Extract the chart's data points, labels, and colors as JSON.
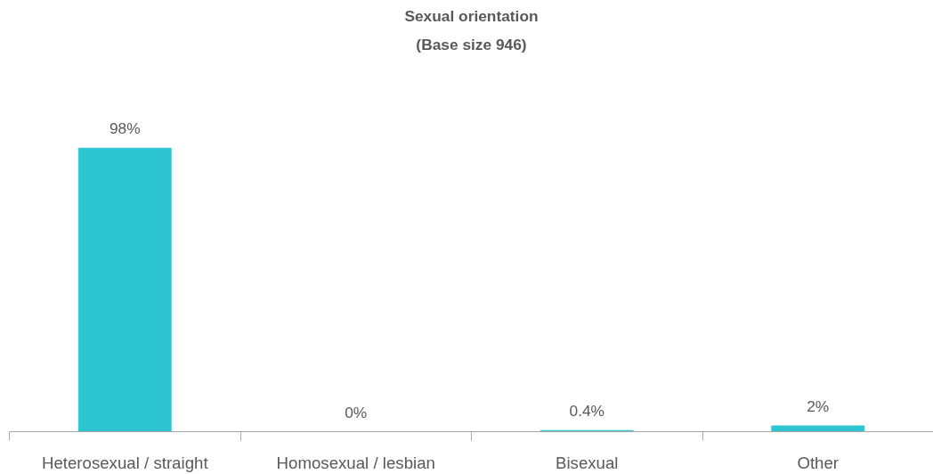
{
  "chart_data": {
    "type": "bar",
    "title": "Sexual orientation",
    "subtitle": "(Base size 946)",
    "categories": [
      "Heterosexual / straight",
      "Homosexual / lesbian",
      "Bisexual",
      "Other"
    ],
    "values": [
      98,
      0,
      0.4,
      2
    ],
    "value_labels": [
      "98%",
      "0%",
      "0.4%",
      "2%"
    ],
    "color": "#2ec5d3",
    "grid": false
  }
}
